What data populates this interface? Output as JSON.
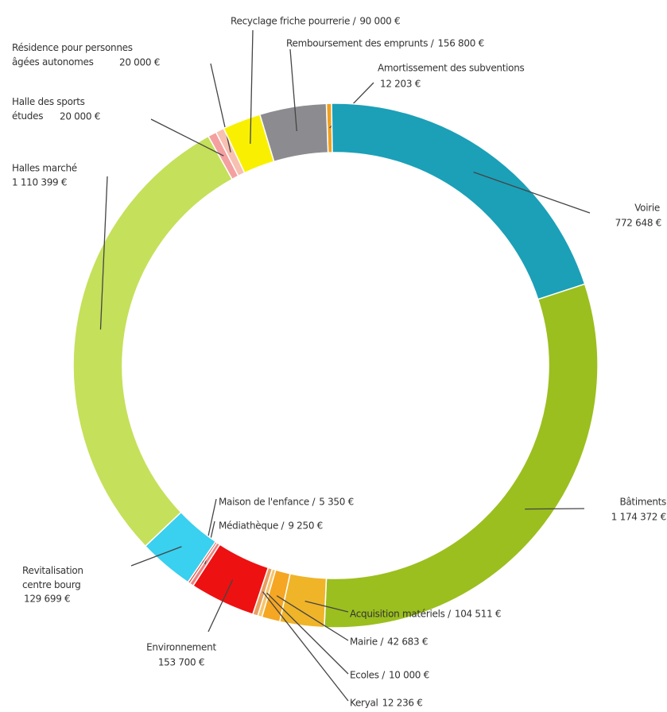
{
  "chart_data": {
    "type": "donut",
    "categories": [
      "Amortissement des subventions",
      "Voirie",
      "Bâtiments",
      "Acquisition matériels /",
      "Mairie /",
      "Ecoles /",
      "Keryal",
      "Environnement",
      "Médiathèque /",
      "Maison de l'enfance /",
      "Revitalisation centre bourg",
      "Halles marché",
      "Halle des sports études",
      "Résidence pour personnes âgées autonomes",
      "Recyclage friche pourrerie /",
      "Remboursement des emprunts /"
    ],
    "values": [
      12203,
      772648,
      1174372,
      104511,
      42683,
      10000,
      12236,
      153700,
      9250,
      5350,
      129699,
      1110399,
      20000,
      20000,
      90000,
      156800
    ],
    "value_labels": [
      "12 203 €",
      "772 648 €",
      "1 174 372 €",
      "104 511 €",
      "42 683 €",
      "10 000 €",
      "12 236 €",
      "153 700 €",
      "9 250 €",
      "5 350 €",
      "129 699 €",
      "1 110 399 €",
      "20 000 €",
      "20 000 €",
      "90 000 €",
      "156 800 €"
    ],
    "colors": [
      "#f0a020",
      "#1ba0b8",
      "#9bbf1e",
      "#f0b429",
      "#f5a623",
      "#f7c46a",
      "#e8a060",
      "#ee1111",
      "#f08080",
      "#e74c3c",
      "#3ad0f0",
      "#c5e05a",
      "#f4a0a0",
      "#f8c0b0",
      "#f8f000",
      "#8c8c90"
    ]
  }
}
